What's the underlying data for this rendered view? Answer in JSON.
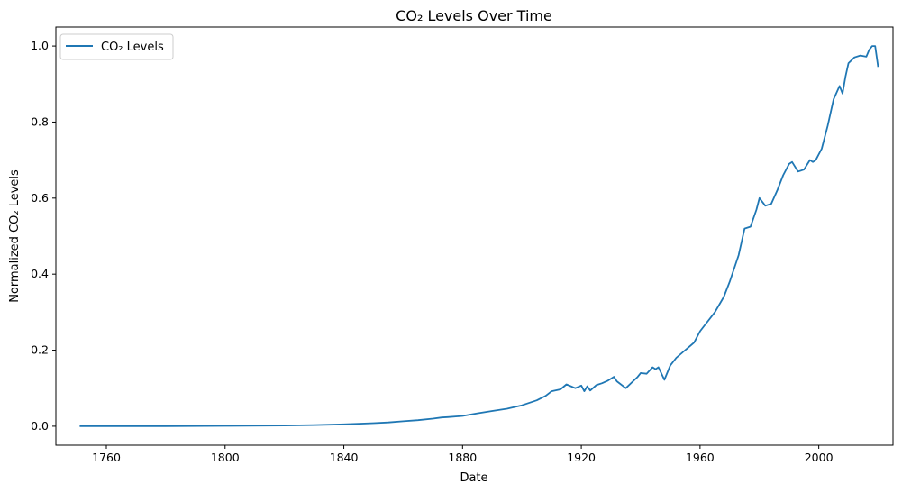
{
  "chart_data": {
    "type": "line",
    "title": "CO₂ Levels Over Time",
    "xlabel": "Date",
    "ylabel": "Normalized CO₂ Levels",
    "xlim": [
      1743,
      2025
    ],
    "ylim": [
      -0.05,
      1.05
    ],
    "x_ticks": [
      1760,
      1800,
      1840,
      1880,
      1920,
      1960,
      2000
    ],
    "y_ticks": [
      0.0,
      0.2,
      0.4,
      0.6,
      0.8,
      1.0
    ],
    "y_tick_labels": [
      "0.0",
      "0.2",
      "0.4",
      "0.6",
      "0.8",
      "1.0"
    ],
    "grid": false,
    "legend_position": "top-left",
    "series": [
      {
        "name": "CO₂ Levels",
        "color": "#1f77b4",
        "x": [
          1751,
          1760,
          1780,
          1800,
          1820,
          1830,
          1840,
          1850,
          1855,
          1860,
          1865,
          1870,
          1873,
          1875,
          1880,
          1885,
          1890,
          1895,
          1900,
          1905,
          1908,
          1910,
          1913,
          1915,
          1918,
          1920,
          1921,
          1922,
          1923,
          1925,
          1927,
          1929,
          1931,
          1932,
          1935,
          1937,
          1939,
          1940,
          1942,
          1944,
          1945,
          1946,
          1948,
          1950,
          1952,
          1955,
          1958,
          1960,
          1962,
          1965,
          1968,
          1970,
          1973,
          1975,
          1977,
          1979,
          1980,
          1982,
          1984,
          1986,
          1988,
          1990,
          1991,
          1993,
          1995,
          1997,
          1998,
          1999,
          2001,
          2003,
          2005,
          2007,
          2008,
          2009,
          2010,
          2012,
          2014,
          2016,
          2017,
          2018,
          2019,
          2020
        ],
        "y": [
          0.0,
          0.0,
          0.0,
          0.001,
          0.002,
          0.003,
          0.005,
          0.008,
          0.01,
          0.013,
          0.016,
          0.02,
          0.023,
          0.024,
          0.027,
          0.034,
          0.04,
          0.046,
          0.055,
          0.068,
          0.08,
          0.092,
          0.097,
          0.11,
          0.1,
          0.107,
          0.092,
          0.105,
          0.094,
          0.108,
          0.113,
          0.12,
          0.13,
          0.118,
          0.1,
          0.115,
          0.13,
          0.14,
          0.138,
          0.155,
          0.15,
          0.155,
          0.122,
          0.16,
          0.18,
          0.2,
          0.22,
          0.25,
          0.27,
          0.3,
          0.34,
          0.38,
          0.45,
          0.52,
          0.525,
          0.57,
          0.6,
          0.58,
          0.585,
          0.62,
          0.66,
          0.69,
          0.695,
          0.67,
          0.675,
          0.7,
          0.695,
          0.7,
          0.73,
          0.79,
          0.86,
          0.895,
          0.875,
          0.92,
          0.955,
          0.97,
          0.975,
          0.972,
          0.99,
          1.0,
          1.0,
          0.945
        ]
      }
    ]
  }
}
